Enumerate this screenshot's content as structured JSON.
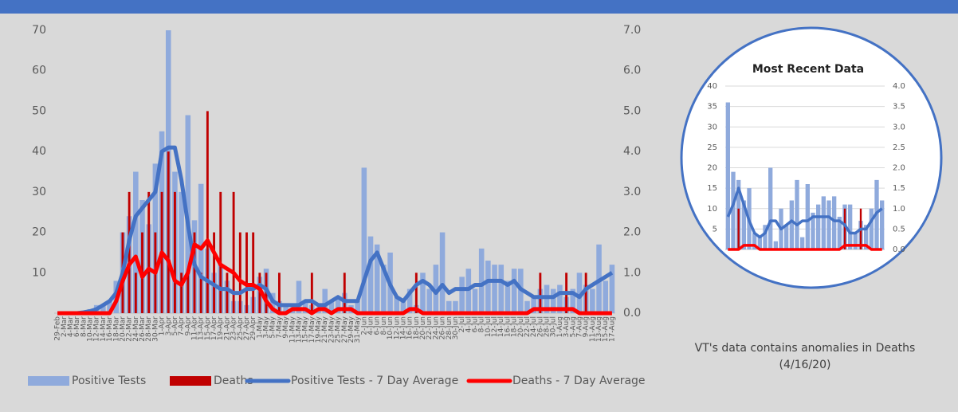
{
  "chart_data": [
    {
      "type": "combo",
      "categories": [
        "29-Feb",
        "2-Mar",
        "4-Mar",
        "6-Mar",
        "8-Mar",
        "10-Mar",
        "12-Mar",
        "14-Mar",
        "16-Mar",
        "18-Mar",
        "20-Mar",
        "22-Mar",
        "24-Mar",
        "26-Mar",
        "28-Mar",
        "30-Mar",
        "1-Apr",
        "3-Apr",
        "5-Apr",
        "7-Apr",
        "9-Apr",
        "11-Apr",
        "13-Apr",
        "15-Apr",
        "17-Apr",
        "19-Apr",
        "21-Apr",
        "23-Apr",
        "25-Apr",
        "27-Apr",
        "29-Apr",
        "1-May",
        "3-May",
        "5-May",
        "7-May",
        "9-May",
        "11-May",
        "13-May",
        "15-May",
        "17-May",
        "19-May",
        "21-May",
        "23-May",
        "25-May",
        "27-May",
        "29-May",
        "31-May",
        "2-Jun",
        "4-Jun",
        "6-Jun",
        "8-Jun",
        "10-Jun",
        "12-Jun",
        "14-Jun",
        "16-Jun",
        "18-Jun",
        "20-Jun",
        "22-Jun",
        "24-Jun",
        "26-Jun",
        "28-Jun",
        "30-Jun",
        "2-Jul",
        "4-Jul",
        "6-Jul",
        "8-Jul",
        "10-Jul",
        "12-Jul",
        "14-Jul",
        "16-Jul",
        "18-Jul",
        "20-Jul",
        "22-Jul",
        "24-Jul",
        "26-Jul",
        "28-Jul",
        "30-Jul",
        "1-Aug",
        "3-Aug",
        "5-Aug",
        "7-Aug",
        "9-Aug",
        "11-Aug",
        "13-Aug",
        "15-Aug",
        "17-Aug"
      ],
      "series": [
        {
          "name": "Positive Tests",
          "type": "bar",
          "color": "#8faadc",
          "values": [
            0,
            0,
            0,
            0,
            0,
            1,
            2,
            2,
            3,
            8,
            20,
            24,
            35,
            28,
            22,
            37,
            45,
            70,
            35,
            30,
            49,
            23,
            32,
            16,
            10,
            12,
            8,
            3,
            3,
            2,
            4,
            9,
            11,
            5,
            3,
            2,
            1,
            8,
            3,
            2,
            1,
            6,
            3,
            4,
            5,
            2,
            3,
            36,
            19,
            17,
            12,
            15,
            4,
            3,
            6,
            2,
            10,
            6,
            12,
            20,
            3,
            3,
            9,
            11,
            6,
            16,
            13,
            12,
            12,
            8,
            11,
            11,
            3,
            4,
            6,
            7,
            6,
            7,
            4,
            6,
            10,
            7,
            6,
            17,
            8,
            12
          ]
        },
        {
          "name": "Deaths",
          "type": "bar",
          "axis": "y2",
          "color": "#c00000",
          "values": [
            0,
            0,
            0,
            0,
            0,
            0,
            0,
            0,
            0,
            0,
            2,
            3,
            1,
            2,
            3,
            2,
            3,
            4,
            3,
            1,
            1,
            2,
            1,
            5,
            2,
            3,
            1,
            3,
            2,
            2,
            2,
            1,
            1,
            0,
            1,
            0,
            0,
            0,
            0,
            1,
            0,
            0,
            0,
            0,
            1,
            0,
            0,
            0,
            0,
            0,
            0,
            0,
            0,
            0,
            0,
            1,
            0,
            0,
            0,
            0,
            0,
            0,
            0,
            0,
            0,
            0,
            0,
            0,
            0,
            0,
            0,
            0,
            0,
            0,
            1,
            0,
            0,
            0,
            1,
            0,
            0,
            1,
            0,
            0,
            0,
            0
          ]
        },
        {
          "name": "Positive Tests - 7 Day Average",
          "type": "line",
          "color": "#4472c4",
          "values": [
            0,
            0,
            0,
            0,
            0.2,
            0.5,
            1,
            2,
            3,
            5,
            10,
            18,
            24,
            26,
            28,
            30,
            40,
            41,
            41,
            33,
            22,
            12,
            9,
            8,
            7,
            6,
            6,
            5,
            5,
            6,
            6,
            7,
            6,
            3,
            2,
            2,
            2,
            2,
            3,
            3,
            2,
            2,
            3,
            4,
            3,
            3,
            3,
            8,
            13,
            15,
            11,
            7,
            4,
            3,
            5,
            7,
            8,
            7,
            5,
            7,
            5,
            6,
            6,
            6,
            7,
            7,
            8,
            8,
            8,
            7,
            8,
            6,
            5,
            4,
            4,
            4,
            4,
            5,
            5,
            5,
            4,
            6,
            7,
            8,
            9,
            10
          ]
        },
        {
          "name": "Deaths - 7 Day Average",
          "type": "line",
          "axis": "y2",
          "color": "#ff0000",
          "values": [
            0,
            0,
            0,
            0,
            0,
            0,
            0,
            0,
            0,
            0.3,
            0.8,
            1.2,
            1.4,
            0.9,
            1.1,
            1.0,
            1.5,
            1.3,
            0.8,
            0.7,
            1.0,
            1.7,
            1.6,
            1.8,
            1.5,
            1.2,
            1.1,
            1.0,
            0.8,
            0.7,
            0.7,
            0.6,
            0.3,
            0.1,
            0,
            0,
            0.1,
            0.1,
            0.1,
            0,
            0.1,
            0.1,
            0,
            0.1,
            0.1,
            0.1,
            0,
            0,
            0,
            0,
            0,
            0,
            0,
            0,
            0.1,
            0.1,
            0,
            0,
            0,
            0,
            0,
            0,
            0,
            0,
            0,
            0,
            0,
            0,
            0,
            0,
            0,
            0,
            0,
            0.1,
            0.1,
            0.1,
            0.1,
            0.1,
            0.1,
            0.1,
            0,
            0,
            0,
            0,
            0,
            0
          ]
        }
      ],
      "ylim": [
        0,
        70
      ],
      "yticks": [
        10,
        20,
        30,
        40,
        50,
        60,
        70
      ],
      "y2lim": [
        0,
        7
      ],
      "y2ticks": [
        {
          "value": 0,
          "label": "0.0"
        },
        {
          "value": 1,
          "label": "1.0"
        },
        {
          "value": 2,
          "label": "2.0"
        },
        {
          "value": 3,
          "label": "3.0"
        },
        {
          "value": 4,
          "label": "4.0"
        },
        {
          "value": 5,
          "label": "5.0"
        },
        {
          "value": 6,
          "label": "6.0"
        },
        {
          "value": 7,
          "label": "7.0"
        }
      ],
      "grid": false,
      "legend": "bottom"
    },
    {
      "type": "combo",
      "title": "Most Recent Data",
      "series": [
        {
          "type": "bar",
          "color": "#8faadc",
          "values": [
            36,
            19,
            17,
            12,
            15,
            4,
            3,
            6,
            20,
            2,
            10,
            6,
            12,
            17,
            3,
            16,
            9,
            11,
            13,
            12,
            13,
            8,
            11,
            11,
            4,
            7,
            6,
            10,
            17,
            12
          ]
        },
        {
          "type": "bar",
          "axis": "y2",
          "color": "#c00000",
          "values": [
            0,
            0,
            1,
            0,
            0,
            0,
            0,
            0,
            0,
            0,
            0,
            0,
            0,
            0,
            0,
            0,
            0,
            0,
            0,
            0,
            0,
            0,
            1,
            0,
            0,
            1,
            0,
            0,
            0,
            0
          ]
        },
        {
          "type": "line",
          "color": "#4472c4",
          "values": [
            8,
            11,
            15,
            11,
            7,
            4,
            3,
            4,
            7,
            7,
            5,
            6,
            7,
            6,
            7,
            7,
            8,
            8,
            8,
            8,
            7,
            7,
            6,
            4,
            4,
            5,
            5,
            7,
            9,
            10
          ]
        },
        {
          "type": "line",
          "axis": "y2",
          "color": "#ff0000",
          "values": [
            0,
            0,
            0,
            0.1,
            0.1,
            0.1,
            0,
            0,
            0,
            0,
            0,
            0,
            0,
            0,
            0,
            0,
            0,
            0,
            0,
            0,
            0,
            0,
            0.1,
            0.1,
            0.1,
            0.1,
            0.1,
            0,
            0,
            0
          ]
        }
      ],
      "ylim": [
        0,
        40
      ],
      "yticks": [
        5,
        10,
        15,
        20,
        25,
        30,
        35,
        40
      ],
      "y2lim": [
        0,
        4
      ],
      "y2ticks": [
        {
          "value": 0,
          "label": "0.0"
        },
        {
          "value": 0.5,
          "label": "0.5"
        },
        {
          "value": 1,
          "label": "1.0"
        },
        {
          "value": 1.5,
          "label": "1.5"
        },
        {
          "value": 2,
          "label": "2.0"
        },
        {
          "value": 2.5,
          "label": "2.5"
        },
        {
          "value": 3,
          "label": "3.0"
        },
        {
          "value": 3.5,
          "label": "3.5"
        },
        {
          "value": 4,
          "label": "4.0"
        }
      ],
      "grid": true
    }
  ],
  "caption": [
    "VT's data contains anomalies in Deaths",
    "(4/16/20)"
  ]
}
